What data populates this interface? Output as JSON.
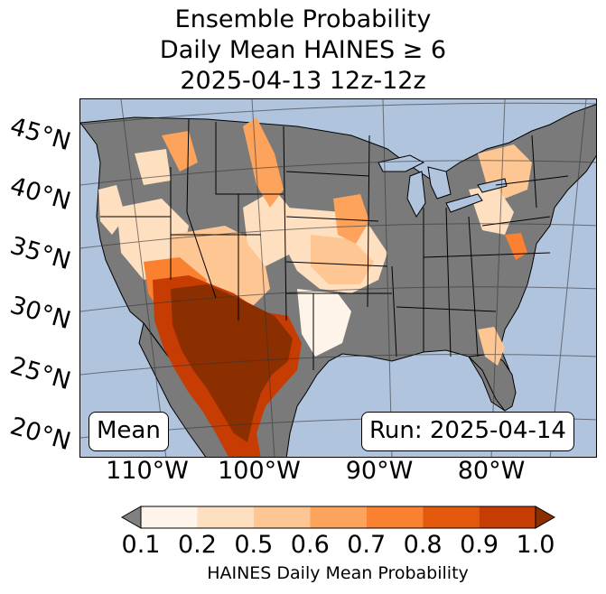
{
  "title": {
    "line1": "Ensemble Probability",
    "line2": "Daily Mean HAINES ≥ 6",
    "line3": "2025-04-13 12z-12z"
  },
  "map": {
    "region": "Contiguous United States",
    "colors": {
      "ocean": "#b0c4de",
      "land_no_data": "#7a7a7a",
      "lakes": "#b0c4de"
    },
    "lat_labels": [
      "45°N",
      "40°N",
      "35°N",
      "30°N",
      "25°N",
      "20°N"
    ],
    "lon_labels": [
      "110°W",
      "100°W",
      "90°W",
      "80°W"
    ],
    "mean_label": "Mean",
    "run_label": "Run: 2025-04-14"
  },
  "colorbar": {
    "ticks": [
      "0.1",
      "0.2",
      "0.5",
      "0.6",
      "0.7",
      "0.8",
      "0.9",
      "1.0"
    ],
    "bins": [
      {
        "color": "#fff4ea"
      },
      {
        "color": "#fedfc0"
      },
      {
        "color": "#fdc692"
      },
      {
        "color": "#fda35c"
      },
      {
        "color": "#f98130"
      },
      {
        "color": "#e5590d"
      },
      {
        "color": "#c73c02"
      }
    ],
    "under_color": "#808080",
    "over_color": "#8b2e00",
    "label": "HAINES Daily Mean Probability"
  }
}
